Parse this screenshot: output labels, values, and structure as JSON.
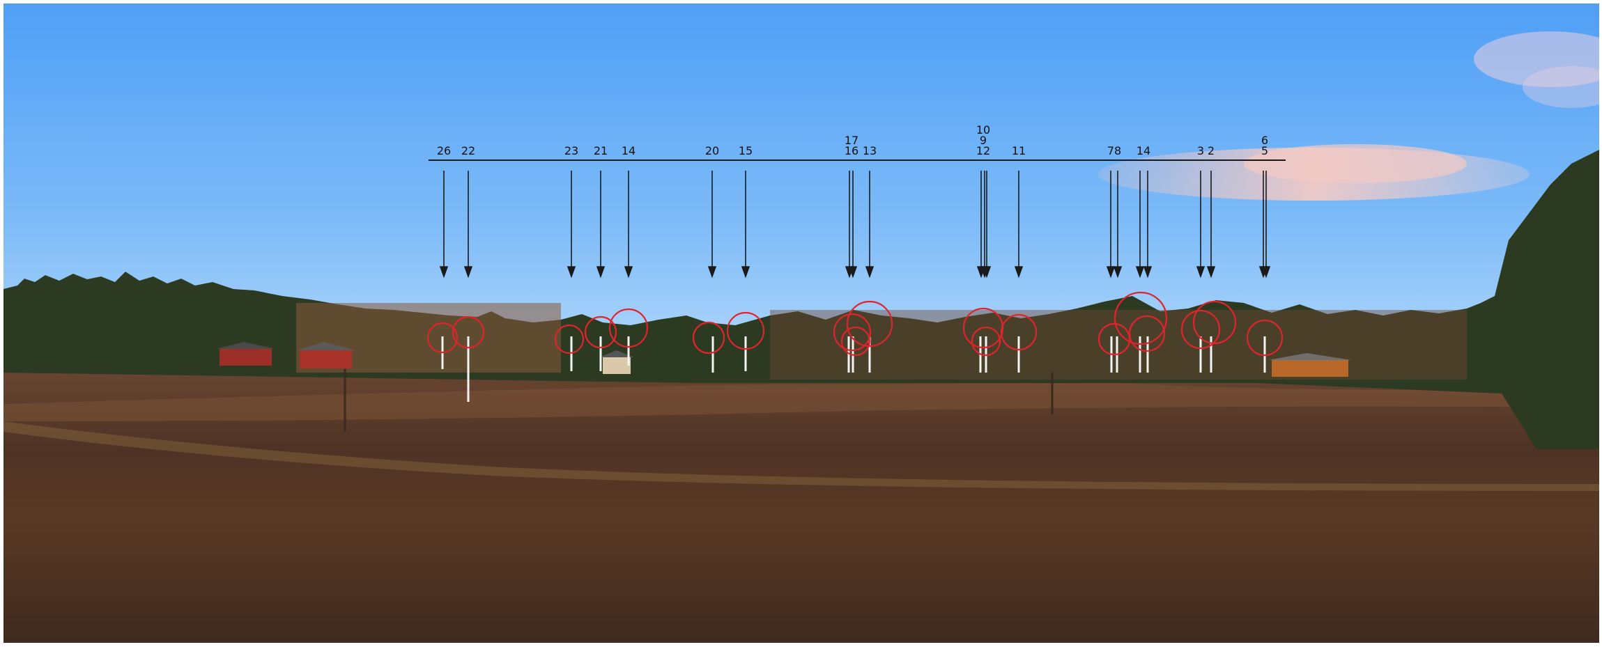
{
  "image": {
    "description_colors": {
      "sky_top": "#4d9df5",
      "sky_bottom": "#a9d3fb",
      "field": "#5a3a26",
      "marker": "#e0242c",
      "line": "#1a1a1a"
    }
  },
  "turbine_labels": [
    {
      "id": "label-26",
      "text": "26"
    },
    {
      "id": "label-22",
      "text": "22"
    },
    {
      "id": "label-23",
      "text": "23"
    },
    {
      "id": "label-21",
      "text": "21"
    },
    {
      "id": "label-14a",
      "text": "14"
    },
    {
      "id": "label-20",
      "text": "20"
    },
    {
      "id": "label-15",
      "text": "15"
    },
    {
      "id": "label-17",
      "text": "17"
    },
    {
      "id": "label-16",
      "text": "16"
    },
    {
      "id": "label-13",
      "text": "13"
    },
    {
      "id": "label-10",
      "text": "10"
    },
    {
      "id": "label-9",
      "text": "9"
    },
    {
      "id": "label-12",
      "text": "12"
    },
    {
      "id": "label-11",
      "text": "11"
    },
    {
      "id": "label-78",
      "text": "78"
    },
    {
      "id": "label-14b",
      "text": "14"
    },
    {
      "id": "label-3",
      "text": "3"
    },
    {
      "id": "label-2",
      "text": "2"
    },
    {
      "id": "label-6",
      "text": "6"
    },
    {
      "id": "label-5",
      "text": "5"
    }
  ]
}
